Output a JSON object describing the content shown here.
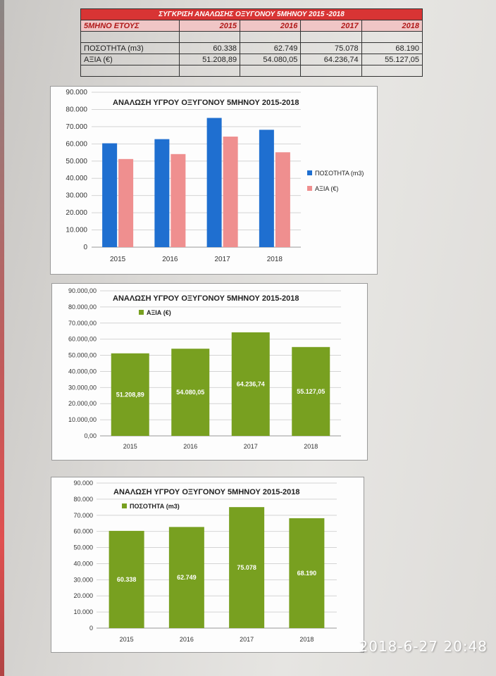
{
  "summary_table": {
    "title": "ΣΥΓΚΡΙΣΗ ΑΝΑΛΩΣΗΣ ΟΞΥΓΟΝΟΥ 5ΜΗΝΟΥ 2015 -2018",
    "header": [
      "5ΜΗΝΟ ΕΤΟΥΣ",
      "2015",
      "2016",
      "2017",
      "2018"
    ],
    "rows": [
      {
        "label": "ΠΟΣΟΤΗΤΑ (m3)",
        "values": [
          "60.338",
          "62.749",
          "75.078",
          "68.190"
        ]
      },
      {
        "label": "ΑΞΙΑ (€)",
        "values": [
          "51.208,89",
          "54.080,05",
          "64.236,74",
          "55.127,05"
        ]
      }
    ]
  },
  "chart_data": [
    {
      "type": "bar",
      "title": "ΑΝΑΛΩΣΗ ΥΓΡΟΥ ΟΞΥΓΟΝΟΥ 5ΜΗΝΟΥ 2015-2018",
      "categories": [
        "2015",
        "2016",
        "2017",
        "2018"
      ],
      "series": [
        {
          "name": "ΠΟΣΟΤΗΤΑ (m3)",
          "values": [
            60338,
            62749,
            75078,
            68190
          ],
          "color": "#1f6fd0"
        },
        {
          "name": "ΑΞΙΑ (€)",
          "values": [
            51208.89,
            54080.05,
            64236.74,
            55127.05
          ],
          "color": "#ef8f8f"
        }
      ],
      "ylim": [
        0,
        90000
      ],
      "yticks": [
        "0",
        "10.000",
        "20.000",
        "30.000",
        "40.000",
        "50.000",
        "60.000",
        "70.000",
        "80.000",
        "90.000"
      ],
      "grid": true,
      "legend": "right"
    },
    {
      "type": "bar",
      "title": "ΑΝΑΛΩΣΗ ΥΓΡΟΥ ΟΞΥΓΟΝΟΥ 5ΜΗΝΟΥ 2015-2018",
      "categories": [
        "2015",
        "2016",
        "2017",
        "2018"
      ],
      "series": [
        {
          "name": "ΑΞΙΑ (€)",
          "values": [
            51208.89,
            54080.05,
            64236.74,
            55127.05
          ],
          "color": "#78a020"
        }
      ],
      "data_labels": [
        "51.208,89",
        "54.080,05",
        "64.236,74",
        "55.127,05"
      ],
      "ylim": [
        0,
        90000
      ],
      "yticks": [
        "0,00",
        "10.000,00",
        "20.000,00",
        "30.000,00",
        "40.000,00",
        "50.000,00",
        "60.000,00",
        "70.000,00",
        "80.000,00",
        "90.000,00"
      ],
      "grid": true,
      "legend": "top-left"
    },
    {
      "type": "bar",
      "title": "ΑΝΑΛΩΣΗ ΥΓΡΟΥ ΟΞΥΓΟΝΟΥ 5ΜΗΝΟΥ 2015-2018",
      "categories": [
        "2015",
        "2016",
        "2017",
        "2018"
      ],
      "series": [
        {
          "name": "ΠΟΣΟΤΗΤΑ (m3)",
          "values": [
            60338,
            62749,
            75078,
            68190
          ],
          "color": "#78a020"
        }
      ],
      "data_labels": [
        "60.338",
        "62.749",
        "75.078",
        "68.190"
      ],
      "ylim": [
        0,
        90000
      ],
      "yticks": [
        "0",
        "10.000",
        "20.000",
        "30.000",
        "40.000",
        "50.000",
        "60.000",
        "70.000",
        "80.000",
        "90.000"
      ],
      "grid": true,
      "legend": "top-left"
    }
  ],
  "timestamp": "2018-6-27 20:48"
}
